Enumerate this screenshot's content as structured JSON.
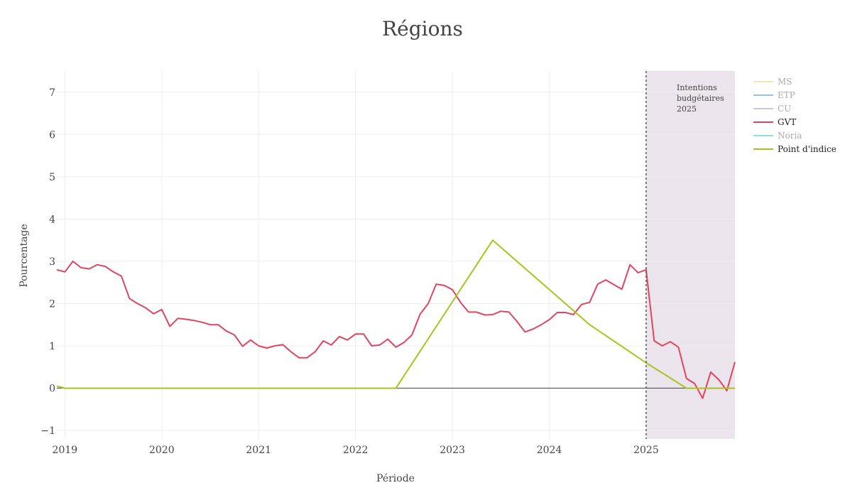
{
  "chart_data": {
    "type": "line",
    "title": "Régions",
    "xlabel": "Période",
    "ylabel": "Pourcentage",
    "xlim": [
      "2018-12-01",
      "2025-12-01"
    ],
    "ylim": [
      -1.2,
      7.5
    ],
    "x_ticks": [
      "2019",
      "2020",
      "2021",
      "2022",
      "2023",
      "2024",
      "2025"
    ],
    "y_ticks": [
      "−1",
      "0",
      "1",
      "2",
      "3",
      "4",
      "5",
      "6",
      "7"
    ],
    "grid": true,
    "legend_position": "right",
    "projection_region": {
      "start": "2025-01-01",
      "end": "2025-12-01",
      "label_lines": [
        "Intentions",
        "budgétaires",
        "2025"
      ],
      "color": "#ece4ec"
    },
    "series": [
      {
        "name": "MS",
        "color": "#f6e3b8",
        "visible": false,
        "x": [],
        "y": []
      },
      {
        "name": "ETP",
        "color": "#8ec9ea",
        "visible": false,
        "x": [],
        "y": []
      },
      {
        "name": "CU",
        "color": "#c9c3e6",
        "visible": false,
        "x": [],
        "y": []
      },
      {
        "name": "GVT",
        "color": "#e0455f",
        "visible": true,
        "x": [
          "2018-12-01",
          "2019-01-01",
          "2019-02-01",
          "2019-03-01",
          "2019-04-01",
          "2019-05-01",
          "2019-06-01",
          "2019-07-01",
          "2019-08-01",
          "2019-09-01",
          "2019-10-01",
          "2019-11-01",
          "2019-12-01",
          "2020-01-01",
          "2020-02-01",
          "2020-03-01",
          "2020-04-01",
          "2020-05-01",
          "2020-06-01",
          "2020-07-01",
          "2020-08-01",
          "2020-09-01",
          "2020-10-01",
          "2020-11-01",
          "2020-12-01",
          "2021-01-01",
          "2021-02-01",
          "2021-03-01",
          "2021-04-01",
          "2021-05-01",
          "2021-06-01",
          "2021-07-01",
          "2021-08-01",
          "2021-09-01",
          "2021-10-01",
          "2021-11-01",
          "2021-12-01",
          "2022-01-01",
          "2022-02-01",
          "2022-03-01",
          "2022-04-01",
          "2022-05-01",
          "2022-06-01",
          "2022-07-01",
          "2022-08-01",
          "2022-09-01",
          "2022-10-01",
          "2022-11-01",
          "2022-12-01",
          "2023-01-01",
          "2023-02-01",
          "2023-03-01",
          "2023-04-01",
          "2023-05-01",
          "2023-06-01",
          "2023-07-01",
          "2023-08-01",
          "2023-09-01",
          "2023-10-01",
          "2023-11-01",
          "2023-12-01",
          "2024-01-01",
          "2024-02-01",
          "2024-03-01",
          "2024-04-01",
          "2024-05-01",
          "2024-06-01",
          "2024-07-01",
          "2024-08-01",
          "2024-09-01",
          "2024-10-01",
          "2024-11-01",
          "2024-12-01",
          "2025-01-01",
          "2025-02-01",
          "2025-03-01",
          "2025-04-01",
          "2025-05-01",
          "2025-06-01",
          "2025-07-01",
          "2025-08-01",
          "2025-09-01",
          "2025-10-01",
          "2025-11-01",
          "2025-12-01"
        ],
        "y": [
          2.8,
          2.75,
          3.0,
          2.85,
          2.82,
          2.92,
          2.88,
          2.75,
          2.65,
          2.12,
          2.0,
          1.9,
          1.76,
          1.86,
          1.46,
          1.65,
          1.63,
          1.6,
          1.56,
          1.5,
          1.5,
          1.35,
          1.26,
          0.99,
          1.14,
          1.0,
          0.95,
          1.0,
          1.03,
          0.86,
          0.72,
          0.72,
          0.86,
          1.12,
          1.02,
          1.22,
          1.14,
          1.28,
          1.28,
          1.0,
          1.02,
          1.16,
          0.97,
          1.08,
          1.26,
          1.75,
          2.0,
          2.46,
          2.43,
          2.33,
          2.03,
          1.8,
          1.8,
          1.73,
          1.74,
          1.82,
          1.8,
          1.58,
          1.33,
          1.4,
          1.5,
          1.62,
          1.79,
          1.79,
          1.74,
          1.98,
          2.03,
          2.46,
          2.56,
          2.45,
          2.34,
          2.92,
          2.73,
          2.8,
          1.12,
          1.0,
          1.1,
          0.97,
          0.23,
          0.11,
          -0.24,
          0.38,
          0.2,
          -0.06,
          0.62
        ]
      },
      {
        "name": "Noria",
        "color": "#8ee0da",
        "visible": false,
        "x": [],
        "y": []
      },
      {
        "name": "Point d'indice",
        "color": "#a8c41d",
        "visible": true,
        "x": [
          "2018-12-01",
          "2019-01-01",
          "2022-06-01",
          "2023-06-01",
          "2024-06-01",
          "2025-01-01",
          "2025-06-01",
          "2025-12-01"
        ],
        "y": [
          0.05,
          0.0,
          0.0,
          3.5,
          1.5,
          0.6,
          0.0,
          0.0
        ]
      }
    ]
  }
}
